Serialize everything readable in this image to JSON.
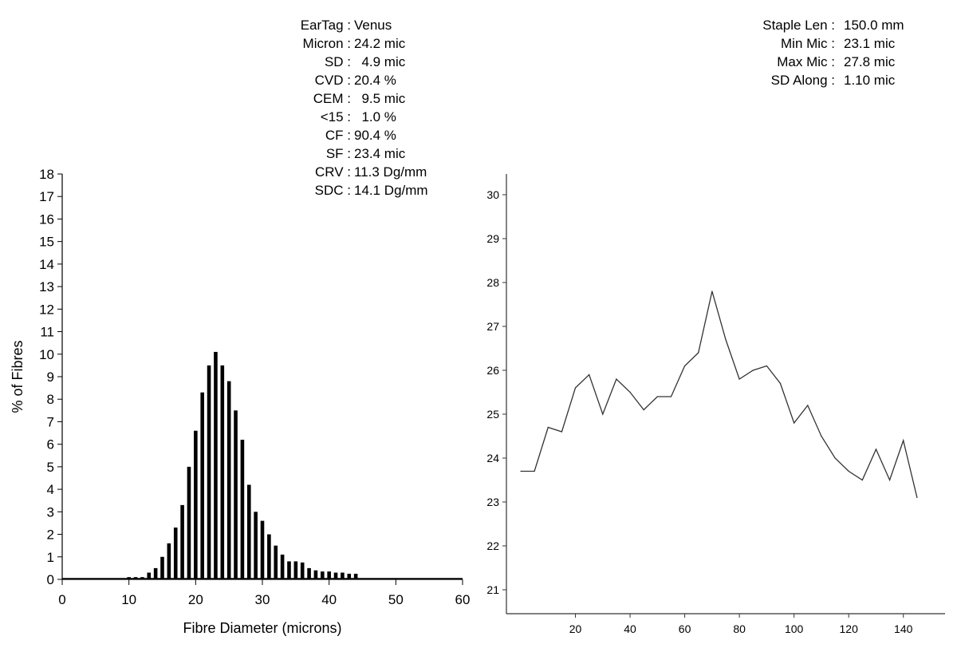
{
  "stats_left": [
    {
      "label": "EarTag :",
      "value": "Venus"
    },
    {
      "label": "Micron :",
      "value": "24.2 mic"
    },
    {
      "label": "SD :",
      "value": "  4.9 mic"
    },
    {
      "label": "CVD :",
      "value": "20.4 %"
    },
    {
      "label": "CEM :",
      "value": "  9.5 mic"
    },
    {
      "label": "<15 :",
      "value": "  1.0 %"
    },
    {
      "label": "CF :",
      "value": "90.4 %"
    },
    {
      "label": "SF :",
      "value": "23.4 mic"
    },
    {
      "label": "CRV :",
      "value": "11.3 Dg/mm"
    },
    {
      "label": "SDC :",
      "value": "14.1 Dg/mm"
    }
  ],
  "stats_right": [
    {
      "label": "Staple Len :",
      "value": "150.0 mm"
    },
    {
      "label": "Min Mic :",
      "value": "23.1 mic"
    },
    {
      "label": "Max Mic :",
      "value": "27.8 mic"
    },
    {
      "label": "SD Along :",
      "value": "1.10 mic"
    }
  ],
  "chart_data": [
    {
      "type": "bar",
      "title": "",
      "xlabel": "Fibre Diameter (microns)",
      "ylabel": "% of Fibres",
      "xlim": [
        0,
        60
      ],
      "ylim": [
        0,
        18
      ],
      "xticks": [
        0,
        10,
        20,
        30,
        40,
        50,
        60
      ],
      "yticks": [
        0,
        1,
        2,
        3,
        4,
        5,
        6,
        7,
        8,
        9,
        10,
        11,
        12,
        13,
        14,
        15,
        16,
        17,
        18
      ],
      "grid": false,
      "bar_color": "#000000",
      "x": [
        10,
        11,
        12,
        13,
        14,
        15,
        16,
        17,
        18,
        19,
        20,
        21,
        22,
        23,
        24,
        25,
        26,
        27,
        28,
        29,
        30,
        31,
        32,
        33,
        34,
        35,
        36,
        37,
        38,
        39,
        40,
        41,
        42,
        43,
        44
      ],
      "values": [
        0.1,
        0.1,
        0.1,
        0.3,
        0.5,
        1.0,
        1.6,
        2.3,
        3.3,
        5.0,
        6.6,
        8.3,
        9.5,
        10.1,
        9.5,
        8.8,
        7.5,
        6.2,
        4.2,
        3.0,
        2.6,
        2.0,
        1.5,
        1.1,
        0.8,
        0.8,
        0.75,
        0.5,
        0.4,
        0.35,
        0.35,
        0.3,
        0.3,
        0.25,
        0.25
      ]
    },
    {
      "type": "line",
      "title": "",
      "xlabel": "",
      "ylabel": "",
      "xlim": [
        0,
        150
      ],
      "ylim": [
        20.5,
        30.5
      ],
      "xticks": [
        20,
        40,
        60,
        80,
        100,
        120,
        140
      ],
      "yticks": [
        21,
        22,
        23,
        24,
        25,
        26,
        27,
        28,
        29,
        30
      ],
      "grid": false,
      "line_color": "#333333",
      "x": [
        0,
        5,
        10,
        15,
        20,
        25,
        30,
        35,
        40,
        45,
        50,
        55,
        60,
        65,
        70,
        75,
        80,
        85,
        90,
        95,
        100,
        105,
        110,
        115,
        120,
        125,
        130,
        135,
        140,
        145
      ],
      "y": [
        23.7,
        23.7,
        24.7,
        24.6,
        25.6,
        25.9,
        25.0,
        25.8,
        25.5,
        25.1,
        25.4,
        25.4,
        26.1,
        26.4,
        27.8,
        26.7,
        25.8,
        26.0,
        26.1,
        25.7,
        24.8,
        25.2,
        24.5,
        24.0,
        23.7,
        23.5,
        24.2,
        23.5,
        24.4,
        23.1
      ]
    }
  ]
}
